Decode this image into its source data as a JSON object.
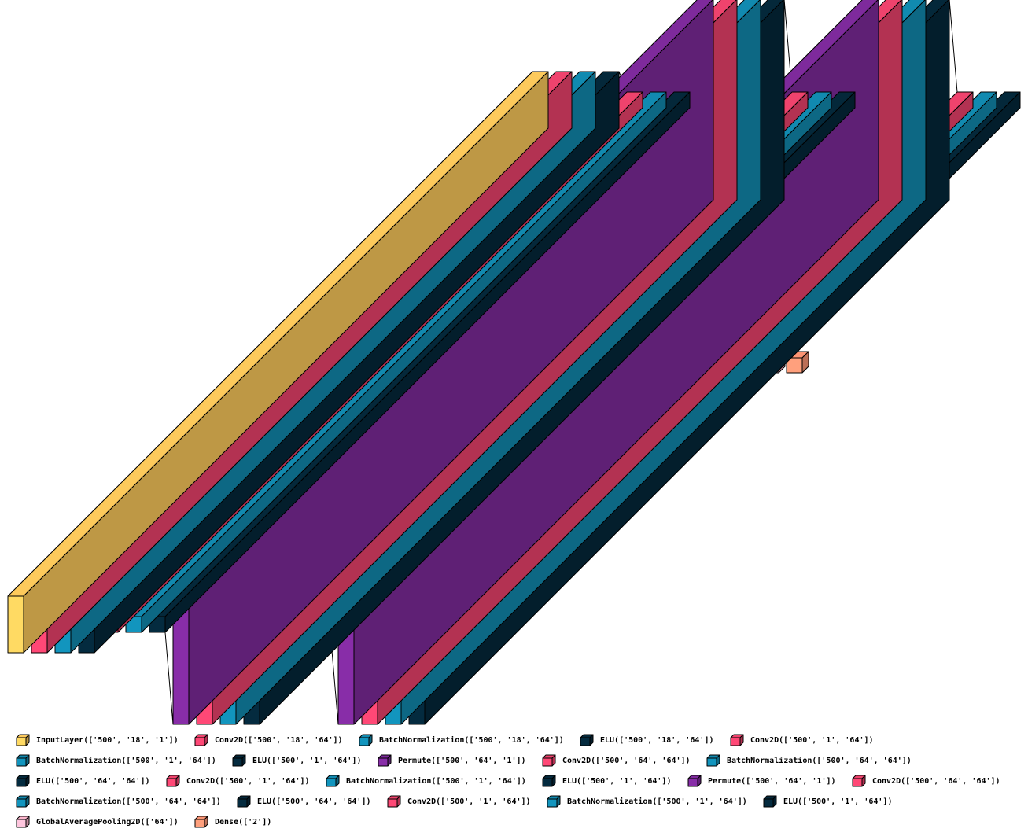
{
  "colors": {
    "input": "#FDCA5C",
    "conv": "#EF436D",
    "bn": "#118AB0",
    "elu": "#04283A",
    "permute": "#7E2A9C",
    "gap": "#FEB7CE",
    "dense": "#FB9474"
  },
  "legend": [
    {
      "label": "InputLayer(['500', '18', '1'])",
      "color": "input"
    },
    {
      "label": "Conv2D(['500', '18', '64'])",
      "color": "conv"
    },
    {
      "label": "BatchNormalization(['500', '18', '64'])",
      "color": "bn"
    },
    {
      "label": "ELU(['500', '18', '64'])",
      "color": "elu"
    },
    {
      "label": "Conv2D(['500', '1', '64'])",
      "color": "conv"
    },
    {
      "label": "BatchNormalization(['500', '1', '64'])",
      "color": "bn"
    },
    {
      "label": "ELU(['500', '1', '64'])",
      "color": "elu"
    },
    {
      "label": "Permute(['500', '64', '1'])",
      "color": "permute"
    },
    {
      "label": "Conv2D(['500', '64', '64'])",
      "color": "conv"
    },
    {
      "label": "BatchNormalization(['500', '64', '64'])",
      "color": "bn"
    },
    {
      "label": "ELU(['500', '64', '64'])",
      "color": "elu"
    },
    {
      "label": "Conv2D(['500', '1', '64'])",
      "color": "conv"
    },
    {
      "label": "BatchNormalization(['500', '1', '64'])",
      "color": "bn"
    },
    {
      "label": "ELU(['500', '1', '64'])",
      "color": "elu"
    },
    {
      "label": "Permute(['500', '64', '1'])",
      "color": "permute"
    },
    {
      "label": "Conv2D(['500', '64', '64'])",
      "color": "conv"
    },
    {
      "label": "BatchNormalization(['500', '64', '64'])",
      "color": "bn"
    },
    {
      "label": "ELU(['500', '64', '64'])",
      "color": "elu"
    },
    {
      "label": "Conv2D(['500', '1', '64'])",
      "color": "conv"
    },
    {
      "label": "BatchNormalization(['500', '1', '64'])",
      "color": "bn"
    },
    {
      "label": "ELU(['500', '1', '64'])",
      "color": "elu"
    },
    {
      "label": "GlobalAveragePooling2D(['64'])",
      "color": "gap"
    },
    {
      "label": "Dense(['2'])",
      "color": "dense"
    }
  ],
  "layers": [
    {
      "name": "input-layer",
      "color": "input"
    },
    {
      "name": "conv2d-layer",
      "color": "conv"
    },
    {
      "name": "batchnorm-layer",
      "color": "bn"
    },
    {
      "name": "elu-layer",
      "color": "elu"
    },
    {
      "name": "conv2d-layer",
      "color": "conv"
    },
    {
      "name": "batchnorm-layer",
      "color": "bn"
    },
    {
      "name": "elu-layer",
      "color": "elu"
    },
    {
      "name": "permute-layer",
      "color": "permute"
    },
    {
      "name": "conv2d-layer",
      "color": "conv"
    },
    {
      "name": "batchnorm-layer",
      "color": "bn"
    },
    {
      "name": "elu-layer",
      "color": "elu"
    },
    {
      "name": "conv2d-layer",
      "color": "conv"
    },
    {
      "name": "batchnorm-layer",
      "color": "bn"
    },
    {
      "name": "elu-layer",
      "color": "elu"
    },
    {
      "name": "permute-layer",
      "color": "permute"
    },
    {
      "name": "conv2d-layer",
      "color": "conv"
    },
    {
      "name": "batchnorm-layer",
      "color": "bn"
    },
    {
      "name": "elu-layer",
      "color": "elu"
    },
    {
      "name": "conv2d-layer",
      "color": "conv"
    },
    {
      "name": "batchnorm-layer",
      "color": "bn"
    },
    {
      "name": "elu-layer",
      "color": "elu"
    },
    {
      "name": "global-average-pooling-layer",
      "color": "gap"
    },
    {
      "name": "dense-layer",
      "color": "dense"
    }
  ]
}
